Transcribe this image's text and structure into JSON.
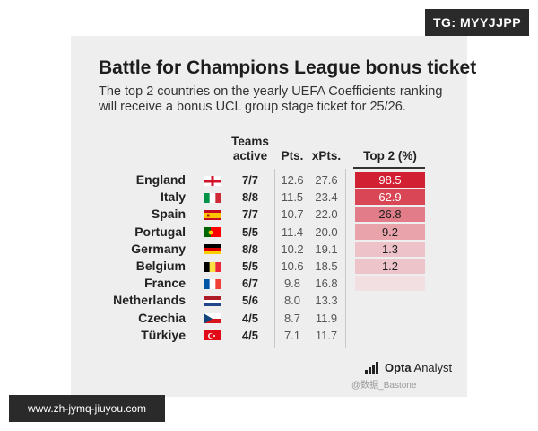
{
  "badges": {
    "tg": "TG: MYYJJPP",
    "site": "www.zh-jymq-jiuyou.com"
  },
  "title": "Battle for Champions League bonus ticket",
  "subtitle": "The top 2 countries on the yearly UEFA Coefficients ranking will receive a bonus UCL group stage ticket for 25/26.",
  "headers": {
    "teams": "Teams active",
    "pts": "Pts.",
    "xpts": "xPts.",
    "top2": "Top 2 (%)"
  },
  "chart_data": {
    "type": "table",
    "title": "Battle for Champions League bonus ticket",
    "columns": [
      "Teams active",
      "Pts.",
      "xPts.",
      "Top 2 (%)"
    ],
    "rows": [
      {
        "country": "England",
        "flag": "england-flag-icon",
        "teams": "7/7",
        "pts": "12.6",
        "xpts": "27.6",
        "top2": 98.5,
        "top2_label": "98.5"
      },
      {
        "country": "Italy",
        "flag": "italy-flag-icon",
        "teams": "8/8",
        "pts": "11.5",
        "xpts": "23.4",
        "top2": 62.9,
        "top2_label": "62.9"
      },
      {
        "country": "Spain",
        "flag": "spain-flag-icon",
        "teams": "7/7",
        "pts": "10.7",
        "xpts": "22.0",
        "top2": 26.8,
        "top2_label": "26.8"
      },
      {
        "country": "Portugal",
        "flag": "portugal-flag-icon",
        "teams": "5/5",
        "pts": "11.4",
        "xpts": "20.0",
        "top2": 9.2,
        "top2_label": "9.2"
      },
      {
        "country": "Germany",
        "flag": "germany-flag-icon",
        "teams": "8/8",
        "pts": "10.2",
        "xpts": "19.1",
        "top2": 1.3,
        "top2_label": "1.3"
      },
      {
        "country": "Belgium",
        "flag": "belgium-flag-icon",
        "teams": "5/5",
        "pts": "10.6",
        "xpts": "18.5",
        "top2": 1.2,
        "top2_label": "1.2"
      },
      {
        "country": "France",
        "flag": "france-flag-icon",
        "teams": "6/7",
        "pts": "9.8",
        "xpts": "16.8",
        "top2": 0.1,
        "top2_label": ""
      },
      {
        "country": "Netherlands",
        "flag": "netherlands-flag-icon",
        "teams": "5/6",
        "pts": "8.0",
        "xpts": "13.3",
        "top2": null,
        "top2_label": ""
      },
      {
        "country": "Czechia",
        "flag": "czechia-flag-icon",
        "teams": "4/5",
        "pts": "8.7",
        "xpts": "11.9",
        "top2": null,
        "top2_label": ""
      },
      {
        "country": "Türkiye",
        "flag": "turkiye-flag-icon",
        "teams": "4/5",
        "pts": "7.1",
        "xpts": "11.7",
        "top2": null,
        "top2_label": ""
      }
    ]
  },
  "brand": {
    "strong": "Opta",
    "light": " Analyst"
  },
  "watermark_mid": "@数据_Bastone"
}
